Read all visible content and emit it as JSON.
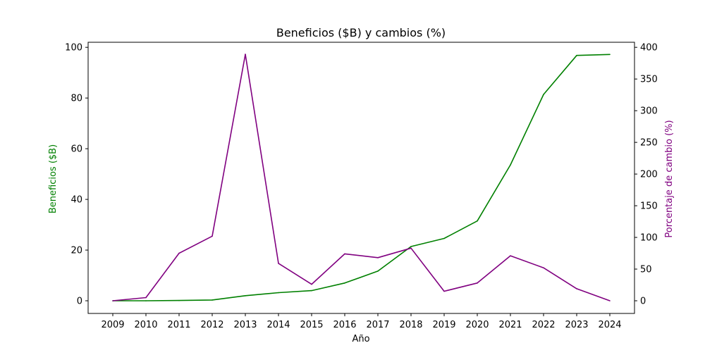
{
  "chart_data": {
    "type": "line",
    "title": "Beneficios ($B) y cambios (%)",
    "xlabel": "Año",
    "ylabel_left": "Beneficios ($B)",
    "ylabel_right": "Porcentaje de cambio (%)",
    "x": [
      "2009",
      "2010",
      "2011",
      "2012",
      "2013",
      "2014",
      "2015",
      "2016",
      "2017",
      "2018",
      "2019",
      "2020",
      "2021",
      "2022",
      "2023",
      "2024"
    ],
    "ylim_left": [
      -5,
      102
    ],
    "yticks_left": [
      0,
      20,
      40,
      60,
      80,
      100
    ],
    "ylim_right": [
      -20,
      408
    ],
    "yticks_right": [
      0,
      50,
      100,
      150,
      200,
      250,
      300,
      350,
      400
    ],
    "grid": false,
    "series": [
      {
        "axis": "left",
        "color": "#008000",
        "values": [
          0,
          0,
          0.1,
          0.3,
          2,
          3.2,
          4,
          7,
          11.7,
          21.4,
          24.6,
          31.5,
          53.6,
          81.4,
          96.8,
          97.2
        ]
      },
      {
        "axis": "right",
        "color": "#800080",
        "values": [
          0,
          5,
          75,
          102,
          389,
          59,
          26,
          74,
          68,
          83,
          15,
          28,
          71,
          52,
          19,
          0
        ]
      }
    ]
  }
}
